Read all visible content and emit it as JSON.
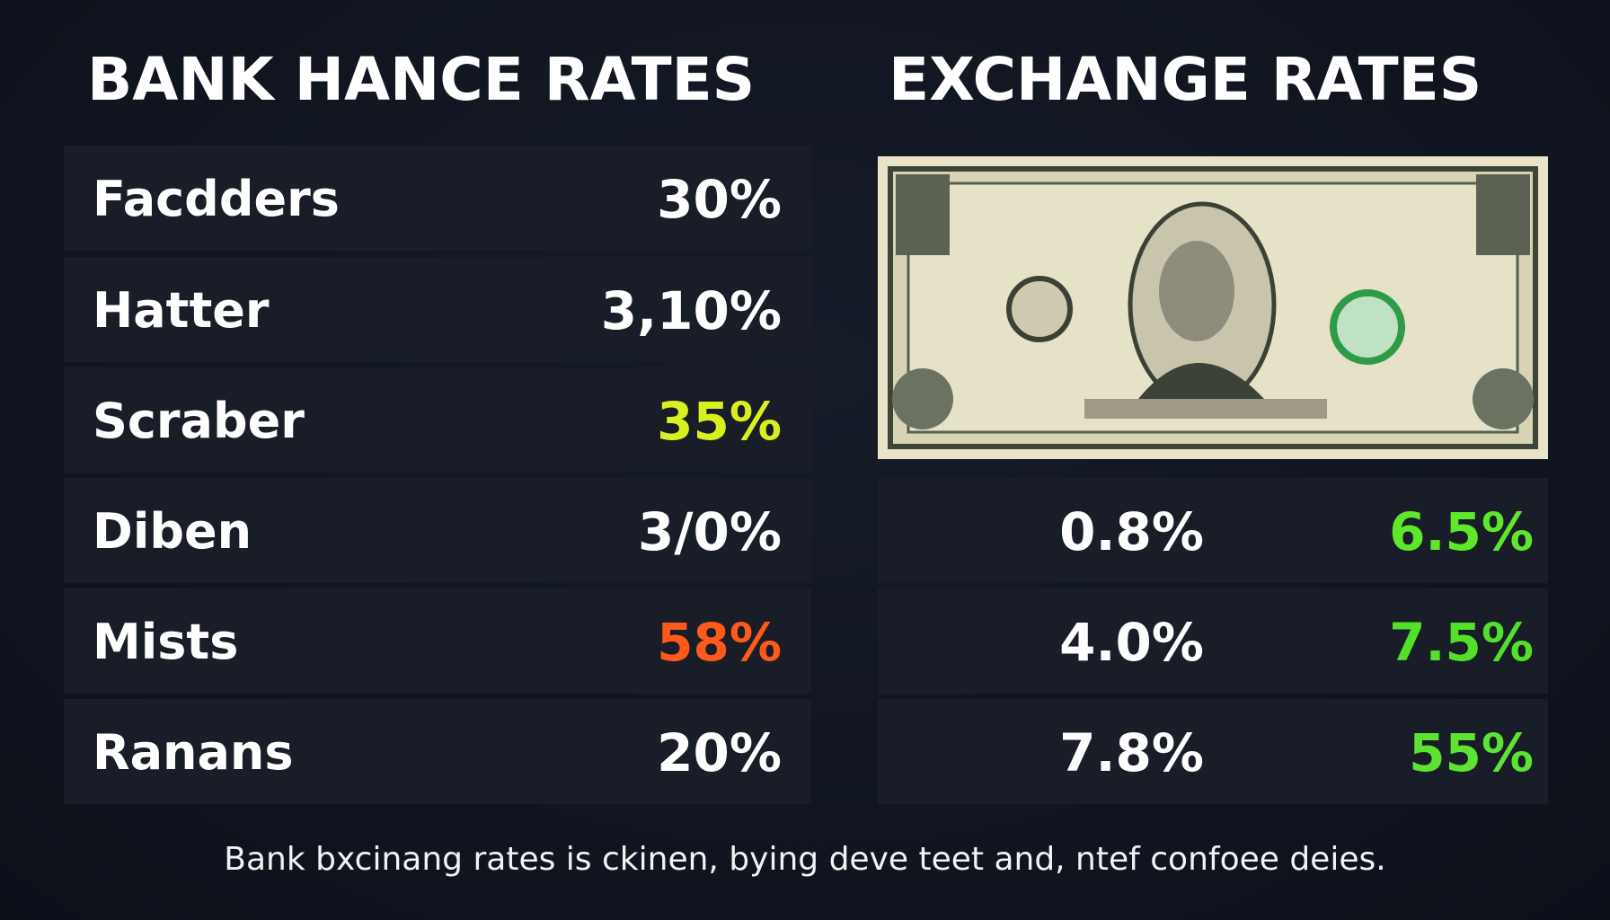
{
  "left": {
    "title": "BANK HANCE RATES",
    "rows": [
      {
        "label": "Facdders",
        "value": "30%",
        "color": "#ffffff"
      },
      {
        "label": "Hatter",
        "value": "3,10%",
        "color": "#ffffff"
      },
      {
        "label": "Scraber",
        "value": "35%",
        "color": "#d9f01f"
      },
      {
        "label": "Diben",
        "value": "3/0%",
        "color": "#ffffff"
      },
      {
        "label": "Mists",
        "value": "58%",
        "color": "#ff5a1a"
      },
      {
        "label": "Ranans",
        "value": "20%",
        "color": "#ffffff"
      }
    ]
  },
  "right": {
    "title": "EXCHANGE RATES",
    "rows": [
      {
        "values": [
          {
            "text": "0.8%",
            "color": "#ffffff"
          },
          {
            "text": "6.5%",
            "color": "#5fe82b"
          }
        ]
      },
      {
        "values": [
          {
            "text": "4.0%",
            "color": "#ffffff"
          },
          {
            "text": "7.5%",
            "color": "#52e02a"
          }
        ]
      },
      {
        "values": [
          {
            "text": "7.8%",
            "color": "#ffffff"
          },
          {
            "text": "55%",
            "color": "#5de432"
          }
        ]
      }
    ]
  },
  "footer": "Bank bxcinang rates is ckinen, bying deve teet and, ntef confoee deies."
}
